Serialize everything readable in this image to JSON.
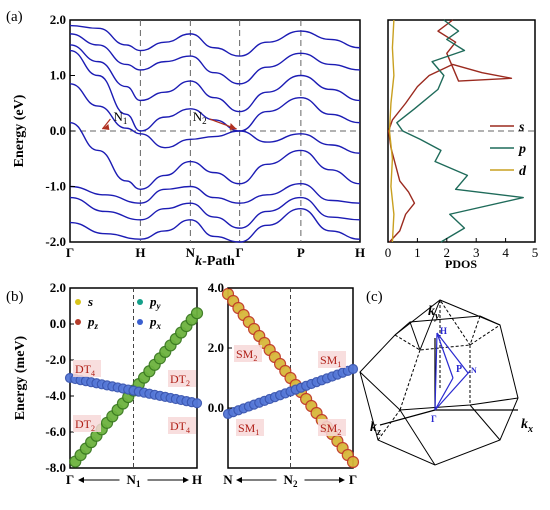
{
  "panels": {
    "a_label": "(a)",
    "b_label": "(b)",
    "c_label": "(c)"
  },
  "chart_data": [
    {
      "type": "line",
      "panel": "(a) band structure",
      "xlabel": "k-Path",
      "xlabel_main": "k",
      "xlabel_rest": "-Path",
      "ylabel": "Energy (eV)",
      "ylim": [
        -2.0,
        2.0
      ],
      "yticks": [
        "-2.0",
        "-1.0",
        "0.0",
        "1.0",
        "2.0"
      ],
      "kpoints": [
        "Γ",
        "H",
        "N",
        "Γ",
        "P",
        "H"
      ],
      "kpoint_positions": [
        0,
        1,
        1.71,
        2.41,
        3.28,
        4.12
      ],
      "annotations": [
        {
          "text": "N",
          "sub": "1",
          "at_k": 1.0,
          "at_e": 0.0
        },
        {
          "text": "N",
          "sub": "2",
          "at_k": 2.41,
          "at_e": 0.0
        }
      ],
      "fermi_level": 0.0,
      "line_color": "#1c1cb4",
      "bands": [
        {
          "name": "b1",
          "values": [
            [
              0,
              -1.65
            ],
            [
              0.5,
              -1.85
            ],
            [
              1,
              -1.95
            ],
            [
              1.35,
              -1.8
            ],
            [
              1.71,
              -1.6
            ],
            [
              2.05,
              -1.9
            ],
            [
              2.41,
              -2.0
            ],
            [
              2.8,
              -1.7
            ],
            [
              3.28,
              -1.4
            ],
            [
              3.7,
              -1.8
            ],
            [
              4.12,
              -1.95
            ]
          ]
        },
        {
          "name": "b2",
          "values": [
            [
              0,
              -1.2
            ],
            [
              0.5,
              -1.45
            ],
            [
              1,
              -1.6
            ],
            [
              1.35,
              -1.4
            ],
            [
              1.71,
              -1.3
            ],
            [
              2.05,
              -1.55
            ],
            [
              2.41,
              -1.75
            ],
            [
              2.8,
              -1.45
            ],
            [
              3.28,
              -1.2
            ],
            [
              3.7,
              -1.55
            ],
            [
              4.12,
              -1.6
            ]
          ]
        },
        {
          "name": "b3",
          "values": [
            [
              0,
              -1.0
            ],
            [
              0.5,
              -1.15
            ],
            [
              1,
              -1.3
            ],
            [
              1.35,
              -1.05
            ],
            [
              1.71,
              -1.0
            ],
            [
              2.05,
              -1.2
            ],
            [
              2.41,
              -1.3
            ],
            [
              2.8,
              -1.15
            ],
            [
              3.28,
              -0.95
            ],
            [
              3.7,
              -1.25
            ],
            [
              4.12,
              -1.3
            ]
          ]
        },
        {
          "name": "b4",
          "values": [
            [
              0,
              0.15
            ],
            [
              0.4,
              -0.35
            ],
            [
              0.8,
              -0.9
            ],
            [
              1,
              -1.05
            ],
            [
              1.35,
              -0.8
            ],
            [
              1.71,
              -0.55
            ],
            [
              2.05,
              -0.75
            ],
            [
              2.41,
              -0.95
            ],
            [
              2.8,
              -0.6
            ],
            [
              3.28,
              -0.35
            ],
            [
              3.7,
              -0.7
            ],
            [
              4.12,
              -0.95
            ]
          ]
        },
        {
          "name": "b5",
          "values": [
            [
              0,
              0.85
            ],
            [
              0.4,
              0.45
            ],
            [
              0.8,
              0.05
            ],
            [
              1,
              -0.05
            ],
            [
              1.35,
              -0.3
            ],
            [
              1.71,
              -0.15
            ],
            [
              2.05,
              -0.1
            ],
            [
              2.41,
              0.0
            ],
            [
              2.8,
              -0.2
            ],
            [
              3.28,
              -0.05
            ],
            [
              3.7,
              -0.25
            ],
            [
              4.12,
              -0.4
            ]
          ]
        },
        {
          "name": "b6",
          "values": [
            [
              0,
              1.45
            ],
            [
              0.4,
              1.0
            ],
            [
              0.8,
              0.3
            ],
            [
              1,
              0.0
            ],
            [
              1.35,
              0.25
            ],
            [
              1.71,
              0.4
            ],
            [
              2.05,
              0.2
            ],
            [
              2.41,
              0.0
            ],
            [
              2.8,
              0.35
            ],
            [
              3.28,
              0.6
            ],
            [
              3.7,
              0.3
            ],
            [
              4.12,
              0.15
            ]
          ]
        },
        {
          "name": "b7",
          "values": [
            [
              0,
              1.55
            ],
            [
              0.4,
              1.25
            ],
            [
              0.8,
              0.8
            ],
            [
              1,
              0.55
            ],
            [
              1.35,
              0.7
            ],
            [
              1.71,
              0.9
            ],
            [
              2.05,
              0.6
            ],
            [
              2.41,
              0.35
            ],
            [
              2.8,
              0.7
            ],
            [
              3.28,
              1.0
            ],
            [
              3.7,
              0.75
            ],
            [
              4.12,
              0.55
            ]
          ]
        },
        {
          "name": "b8",
          "values": [
            [
              0,
              1.75
            ],
            [
              0.4,
              1.55
            ],
            [
              0.8,
              1.2
            ],
            [
              1,
              1.1
            ],
            [
              1.35,
              1.25
            ],
            [
              1.71,
              1.35
            ],
            [
              2.05,
              1.05
            ],
            [
              2.41,
              0.85
            ],
            [
              2.8,
              1.15
            ],
            [
              3.28,
              1.4
            ],
            [
              3.7,
              1.2
            ],
            [
              4.12,
              1.1
            ]
          ]
        },
        {
          "name": "b9",
          "values": [
            [
              0,
              1.9
            ],
            [
              0.4,
              1.85
            ],
            [
              0.8,
              1.55
            ],
            [
              1,
              1.45
            ],
            [
              1.35,
              1.6
            ],
            [
              1.71,
              1.75
            ],
            [
              2.05,
              1.5
            ],
            [
              2.41,
              1.35
            ],
            [
              2.8,
              1.6
            ],
            [
              3.28,
              1.8
            ],
            [
              3.7,
              1.65
            ],
            [
              4.12,
              1.5
            ]
          ]
        }
      ]
    },
    {
      "type": "line",
      "panel": "(a) PDOS",
      "xlabel": "PDOS",
      "xlim": [
        0,
        5
      ],
      "xticks": [
        "0",
        "1",
        "2",
        "3",
        "4",
        "5"
      ],
      "ylim": [
        -2.0,
        2.0
      ],
      "series": [
        {
          "name": "s",
          "color": "#9b2a1f",
          "values": [
            [
              0.05,
              -2.0
            ],
            [
              0.4,
              -1.8
            ],
            [
              0.6,
              -1.5
            ],
            [
              0.9,
              -1.3
            ],
            [
              0.7,
              -1.1
            ],
            [
              0.4,
              -0.9
            ],
            [
              0.25,
              -0.6
            ],
            [
              0.1,
              -0.3
            ],
            [
              0.02,
              0.0
            ],
            [
              0.15,
              0.2
            ],
            [
              0.6,
              0.5
            ],
            [
              1.0,
              0.8
            ],
            [
              1.4,
              1.0
            ],
            [
              2.2,
              1.2
            ],
            [
              3.2,
              1.05
            ],
            [
              4.2,
              0.95
            ],
            [
              2.4,
              0.9
            ],
            [
              2.0,
              1.4
            ],
            [
              2.3,
              1.6
            ],
            [
              1.7,
              1.8
            ],
            [
              2.2,
              2.0
            ]
          ]
        },
        {
          "name": "p",
          "color": "#1f6b5a",
          "values": [
            [
              1.8,
              -2.0
            ],
            [
              2.6,
              -1.75
            ],
            [
              2.1,
              -1.5
            ],
            [
              4.6,
              -1.2
            ],
            [
              2.3,
              -1.05
            ],
            [
              2.7,
              -0.8
            ],
            [
              1.6,
              -0.55
            ],
            [
              1.8,
              -0.35
            ],
            [
              1.1,
              -0.15
            ],
            [
              0.5,
              0.0
            ],
            [
              0.3,
              0.15
            ],
            [
              0.9,
              0.4
            ],
            [
              1.7,
              0.75
            ],
            [
              1.9,
              1.0
            ],
            [
              1.5,
              1.25
            ],
            [
              2.6,
              1.45
            ],
            [
              2.0,
              1.65
            ],
            [
              2.4,
              1.8
            ],
            [
              1.9,
              2.0
            ]
          ]
        },
        {
          "name": "d",
          "color": "#c9a020",
          "values": [
            [
              0.15,
              -2.0
            ],
            [
              0.2,
              -1.5
            ],
            [
              0.1,
              -1.0
            ],
            [
              0.15,
              -0.5
            ],
            [
              0.05,
              0.0
            ],
            [
              0.1,
              0.5
            ],
            [
              0.2,
              1.0
            ],
            [
              0.15,
              1.5
            ],
            [
              0.2,
              2.0
            ]
          ]
        }
      ],
      "legend": [
        "s",
        "p",
        "d"
      ],
      "legend_placement": "right-middle"
    },
    {
      "type": "scatter",
      "panel": "(b) left",
      "ylabel": "Energy (meV)",
      "ylim": [
        -8.0,
        2.0
      ],
      "yticks": [
        "-8.0",
        "-6.0",
        "-4.0",
        "-2.0",
        "0.0",
        "2.0"
      ],
      "xticks": [
        "Γ",
        "N1",
        "H"
      ],
      "legend": [
        {
          "name": "s",
          "color": "#d8c41a"
        },
        {
          "name": "py",
          "color": "#14a08a"
        },
        {
          "name": "pz",
          "color": "#b43c2a"
        },
        {
          "name": "px",
          "color": "#3a5fd0"
        }
      ],
      "labels": [
        {
          "text": "DT",
          "sub": "4",
          "side": "upper-left"
        },
        {
          "text": "DT",
          "sub": "2",
          "side": "upper-right"
        },
        {
          "text": "DT",
          "sub": "2",
          "side": "lower-left"
        },
        {
          "text": "DT",
          "sub": "4",
          "side": "lower-right"
        }
      ],
      "series": [
        {
          "name": "green band",
          "color": "#3a8a24",
          "values": [
            [
              -1,
              -8.0
            ],
            [
              1,
              0.6
            ]
          ]
        },
        {
          "name": "blue band",
          "color": "#4466cc",
          "values": [
            [
              -1,
              -3.0
            ],
            [
              1,
              -4.4
            ]
          ]
        }
      ]
    },
    {
      "type": "scatter",
      "panel": "(b) right",
      "ylim": [
        -2.0,
        4.0
      ],
      "yticks": [
        "0.0",
        "2.0",
        "4.0"
      ],
      "xticks": [
        "N",
        "N2",
        "Γ"
      ],
      "labels": [
        {
          "text": "SM",
          "sub": "2",
          "side": "upper-left"
        },
        {
          "text": "SM",
          "sub": "1",
          "side": "upper-right"
        },
        {
          "text": "SM",
          "sub": "1",
          "side": "lower-left"
        },
        {
          "text": "SM",
          "sub": "2",
          "side": "lower-right"
        }
      ],
      "series": [
        {
          "name": "red/yellow band",
          "color": "#c84530",
          "values": [
            [
              -1,
              3.8
            ],
            [
              1,
              -1.8
            ]
          ]
        },
        {
          "name": "blue band",
          "color": "#4466cc",
          "values": [
            [
              -1,
              -0.2
            ],
            [
              1,
              1.3
            ]
          ]
        }
      ]
    }
  ],
  "bz": {
    "axis_ky": "k",
    "axis_ky_sub": "y",
    "axis_kx": "k",
    "axis_kx_sub": "x",
    "axis_kz": "k",
    "axis_kz_sub": "z",
    "point_H": "H",
    "point_P": "P",
    "point_N": "N",
    "point_G": "Γ"
  }
}
